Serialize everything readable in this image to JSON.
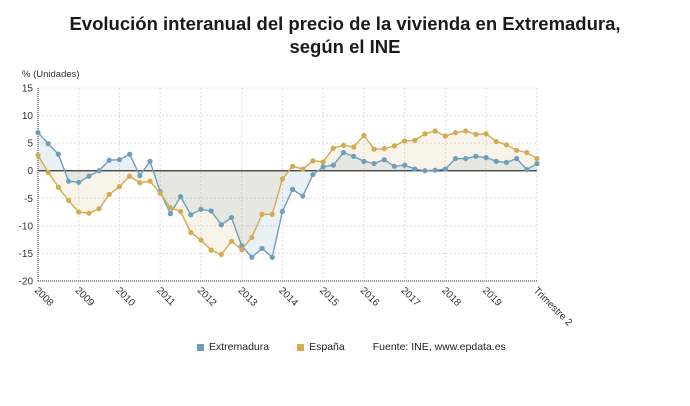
{
  "title_line1": "Evolución interanual del precio de la vivienda en Extremadura,",
  "title_line2": "según el INE",
  "source": "Fuente: INE, www.epdata.es",
  "chart_data": {
    "type": "line",
    "ylabel": "% (Unidades)",
    "ylim": [
      -20,
      15
    ],
    "yticks": [
      15,
      10,
      5,
      0,
      -5,
      -10,
      -15,
      -20
    ],
    "x_tick_labels": [
      "2008",
      "2009",
      "2010",
      "2011",
      "2012",
      "2013",
      "2014",
      "2015",
      "2016",
      "2017",
      "2018",
      "2019",
      "Trimestre 2"
    ],
    "x_frequency": "quarterly, 2008 Q1 – 2020 Q2",
    "grid": true,
    "legend_position": "bottom",
    "series": [
      {
        "name": "Extremadura",
        "color": "#6d9fbd",
        "values": [
          6.9,
          4.9,
          3.0,
          -1.9,
          -2.1,
          -1.0,
          0.0,
          1.9,
          2.0,
          3.0,
          -0.9,
          1.7,
          -3.8,
          -7.8,
          -4.7,
          -8.0,
          -7.0,
          -7.3,
          -9.8,
          -8.5,
          -13.6,
          -15.7,
          -14.1,
          -15.7,
          -7.4,
          -3.4,
          -4.6,
          -0.7,
          0.7,
          1.0,
          3.3,
          2.6,
          1.7,
          1.3,
          2.0,
          0.8,
          1.0,
          0.3,
          0.0,
          0.1,
          0.3,
          2.2,
          2.2,
          2.6,
          2.4,
          1.7,
          1.5,
          2.2,
          0.2,
          1.3
        ]
      },
      {
        "name": "España",
        "color": "#d4aa52",
        "values": [
          2.8,
          -0.3,
          -3.0,
          -5.4,
          -7.5,
          -7.7,
          -6.9,
          -4.3,
          -2.9,
          -1.0,
          -2.2,
          -1.9,
          -4.1,
          -6.7,
          -7.4,
          -11.2,
          -12.6,
          -14.4,
          -15.2,
          -12.8,
          -14.3,
          -12.1,
          -7.9,
          -7.9,
          -1.5,
          0.8,
          0.3,
          1.8,
          1.6,
          4.1,
          4.6,
          4.3,
          6.4,
          3.9,
          4.0,
          4.5,
          5.4,
          5.5,
          6.7,
          7.2,
          6.3,
          6.9,
          7.2,
          6.6,
          6.7,
          5.3,
          4.7,
          3.7,
          3.3,
          2.2
        ]
      }
    ]
  }
}
